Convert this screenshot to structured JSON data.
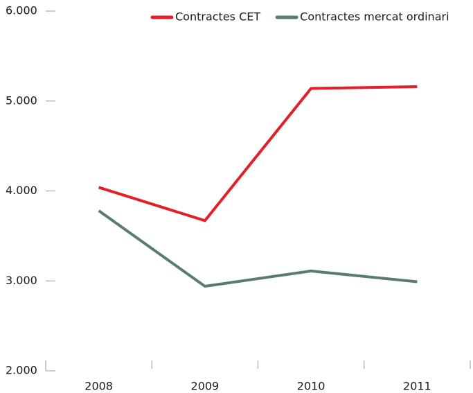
{
  "chart_data": {
    "type": "line",
    "categories": [
      "2008",
      "2009",
      "2010",
      "2011"
    ],
    "series": [
      {
        "name": "Contractes CET",
        "color": "#e3202a",
        "values": [
          4040,
          3670,
          5140,
          5160
        ]
      },
      {
        "name": "Contractes mercat ordinari",
        "color": "#5a7d6a",
        "values": [
          3780,
          2940,
          3110,
          2990
        ]
      }
    ],
    "ylim": [
      2000,
      6000
    ],
    "yticks": [
      {
        "value": 2000,
        "label": "2.000"
      },
      {
        "value": 3000,
        "label": "3.000"
      },
      {
        "value": 4000,
        "label": "4.000"
      },
      {
        "value": 5000,
        "label": "5.000"
      },
      {
        "value": 6000,
        "label": "6.000"
      }
    ],
    "legend": "top-right"
  }
}
